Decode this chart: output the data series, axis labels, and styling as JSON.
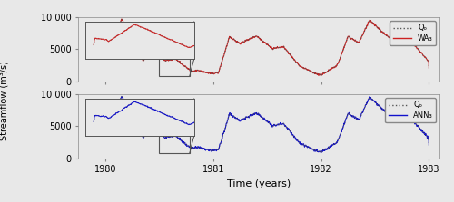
{
  "title": "",
  "xlabel": "Time (years)",
  "ylabel": "Streamflow (m³/s)",
  "xlim_years": [
    1979.75,
    1983.1
  ],
  "ylim": [
    0,
    10000
  ],
  "yticks": [
    0,
    5000,
    10000
  ],
  "ytick_labels": [
    "0",
    "5000",
    "10 000"
  ],
  "xticks": [
    1980,
    1981,
    1982,
    1983
  ],
  "top_line_color": "#cc2222",
  "bottom_line_color": "#1111cc",
  "obs_color": "#555555",
  "obs_linestyle": "dotted",
  "legend_top": [
    "Qₒ",
    "WA₃"
  ],
  "legend_bottom": [
    "Qₒ",
    "ANN₃"
  ],
  "bg_color": "#e8e8e8",
  "inset_box_color": "#555555",
  "seed": 42
}
